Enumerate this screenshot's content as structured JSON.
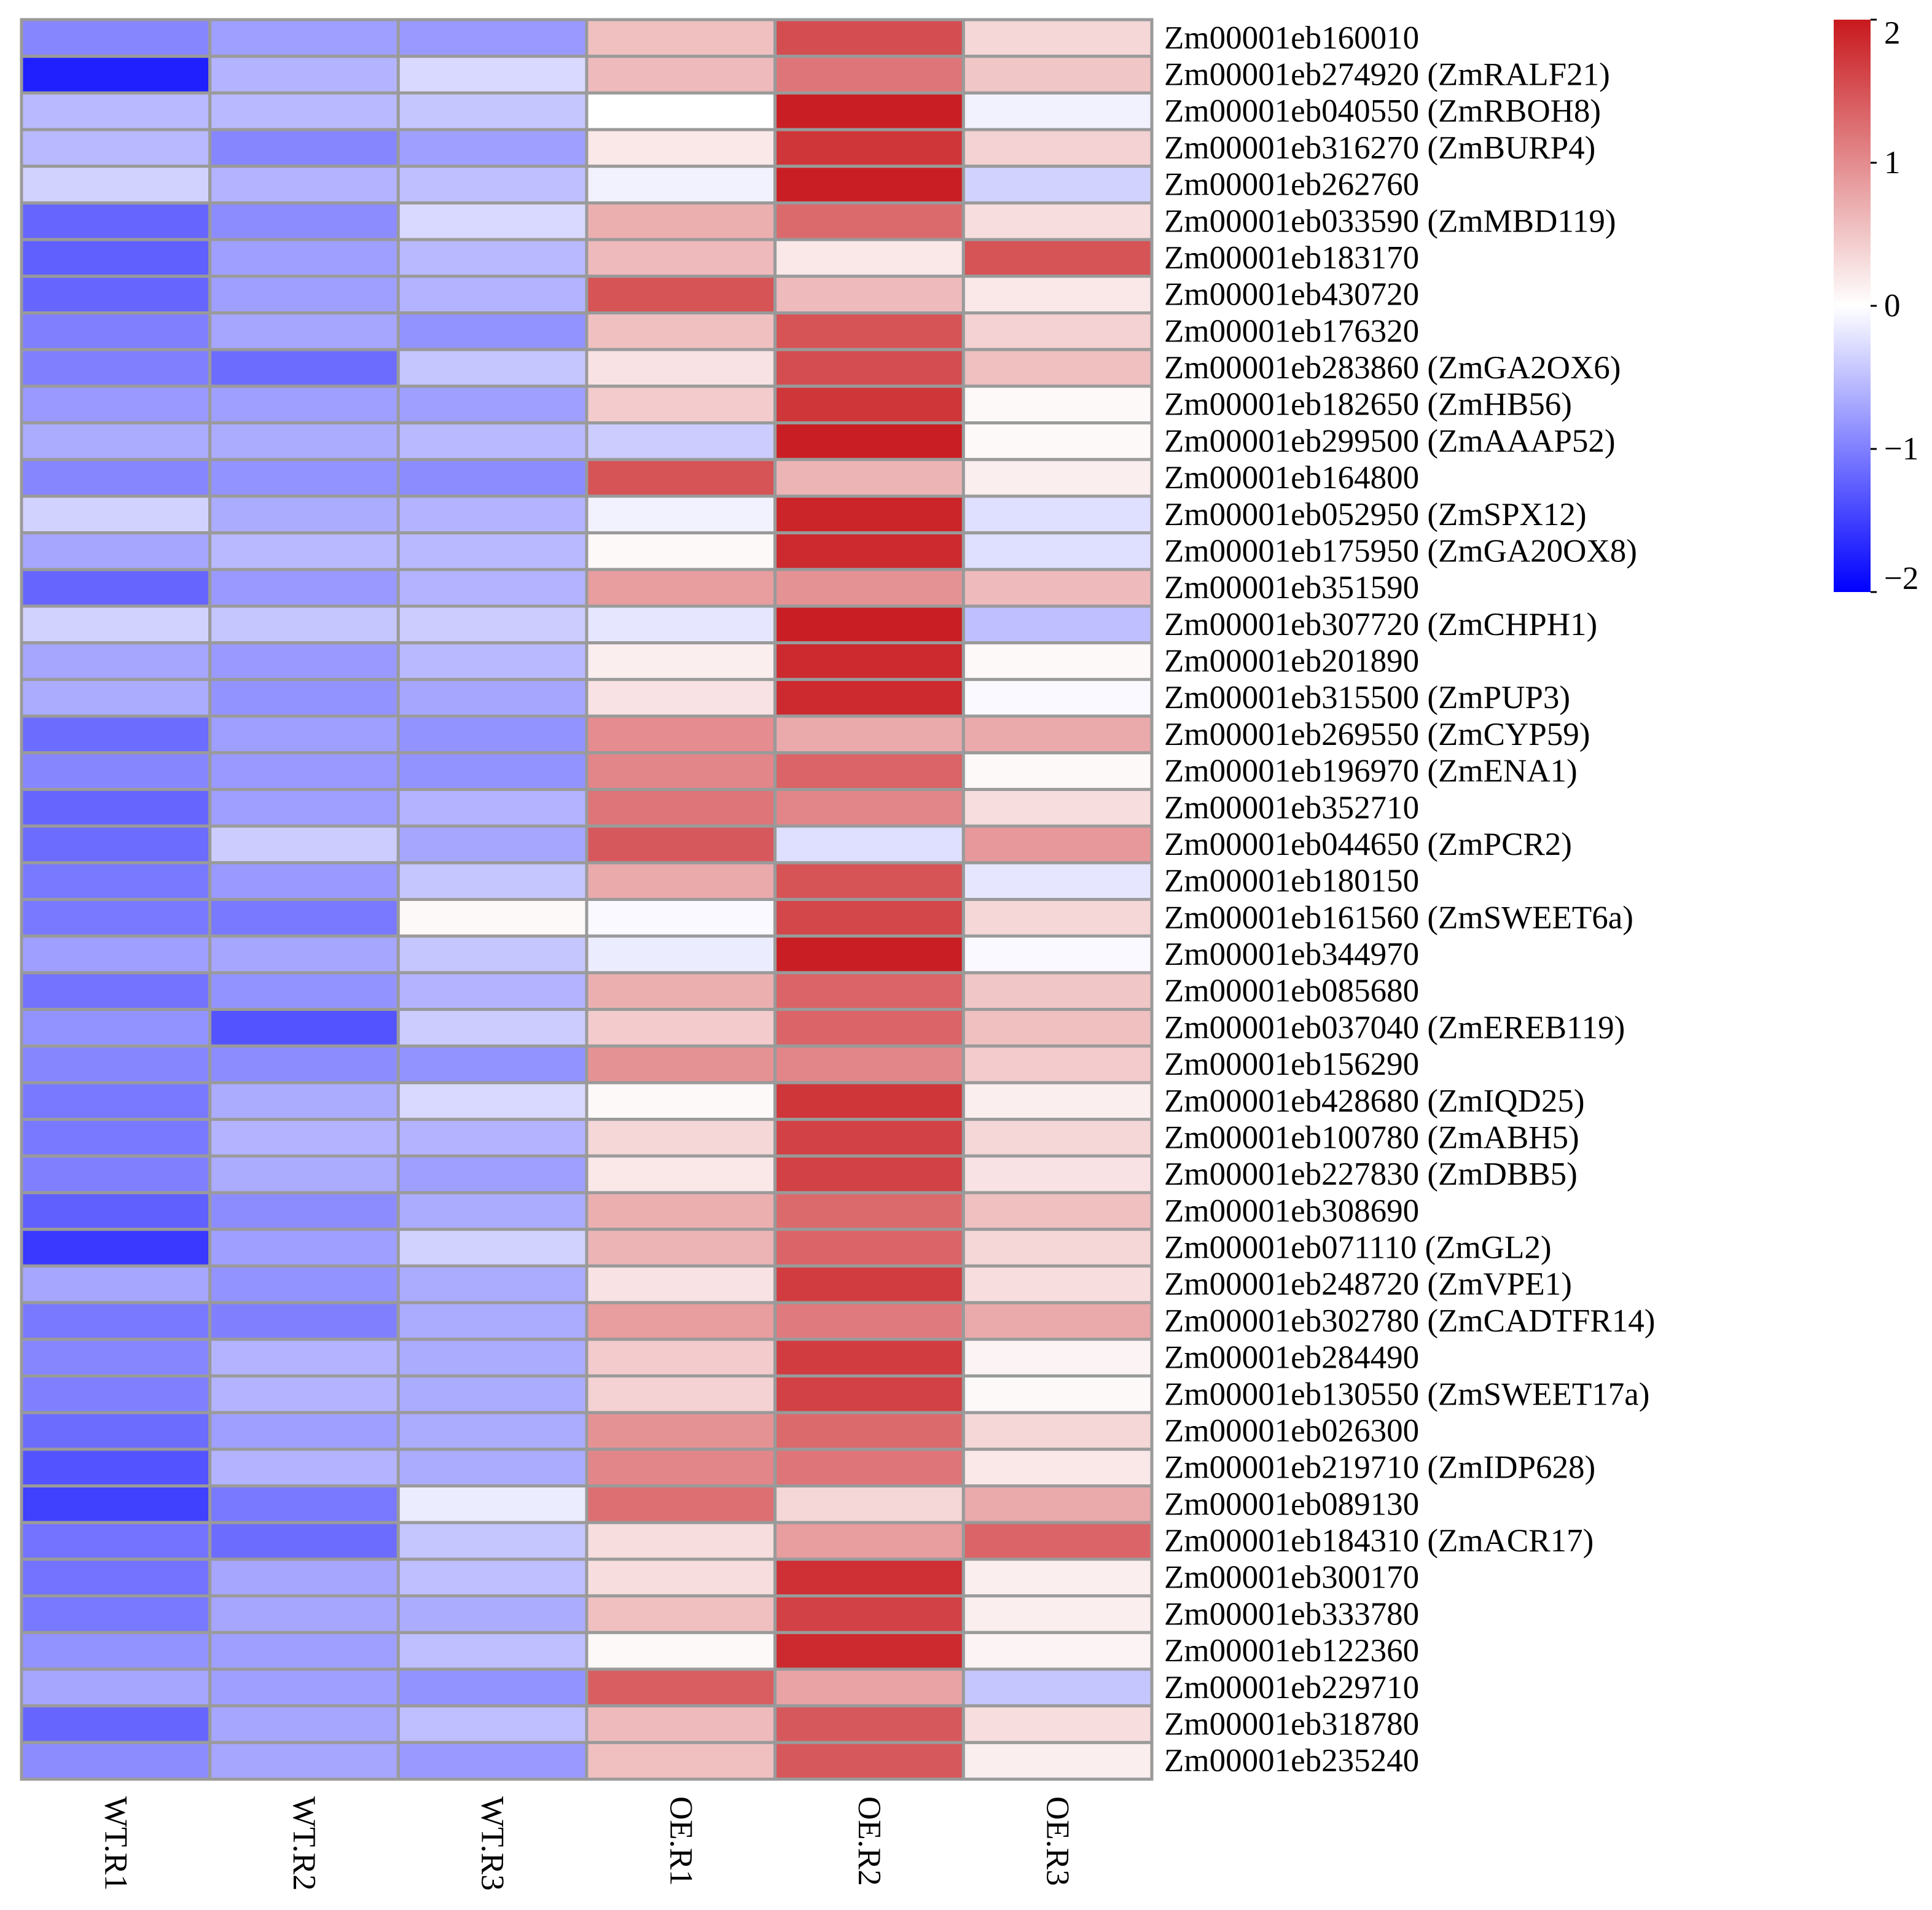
{
  "chart_data": {
    "type": "heatmap",
    "title": "",
    "columns": [
      "WT.R1",
      "WT.R2",
      "WT.R3",
      "OE.R1",
      "OE.R2",
      "OE.R3"
    ],
    "rows": [
      "Zm00001eb160010",
      "Zm00001eb274920 (ZmRALF21)",
      "Zm00001eb040550 (ZmRBOH8)",
      "Zm00001eb316270 (ZmBURP4)",
      "Zm00001eb262760",
      "Zm00001eb033590 (ZmMBD119)",
      "Zm00001eb183170",
      "Zm00001eb430720",
      "Zm00001eb176320",
      "Zm00001eb283860 (ZmGA2OX6)",
      "Zm00001eb182650 (ZmHB56)",
      "Zm00001eb299500 (ZmAAAP52)",
      "Zm00001eb164800",
      "Zm00001eb052950 (ZmSPX12)",
      "Zm00001eb175950 (ZmGA20OX8)",
      "Zm00001eb351590",
      "Zm00001eb307720 (ZmCHPH1)",
      "Zm00001eb201890",
      "Zm00001eb315500 (ZmPUP3)",
      "Zm00001eb269550 (ZmCYP59)",
      "Zm00001eb196970 (ZmENA1)",
      "Zm00001eb352710",
      "Zm00001eb044650 (ZmPCR2)",
      "Zm00001eb180150",
      "Zm00001eb161560 (ZmSWEET6a)",
      "Zm00001eb344970",
      "Zm00001eb085680",
      "Zm00001eb037040 (ZmEREB119)",
      "Zm00001eb156290",
      "Zm00001eb428680 (ZmIQD25)",
      "Zm00001eb100780 (ZmABH5)",
      "Zm00001eb227830 (ZmDBB5)",
      "Zm00001eb308690",
      "Zm00001eb071110 (ZmGL2)",
      "Zm00001eb248720 (ZmVPE1)",
      "Zm00001eb302780 (ZmCADTFR14)",
      "Zm00001eb284490",
      "Zm00001eb130550 (ZmSWEET17a)",
      "Zm00001eb026300",
      "Zm00001eb219710 (ZmIDP628)",
      "Zm00001eb089130",
      "Zm00001eb184310 (ZmACR17)",
      "Zm00001eb300170",
      "Zm00001eb333780",
      "Zm00001eb122360",
      "Zm00001eb229710",
      "Zm00001eb318780",
      "Zm00001eb235240"
    ],
    "values": [
      [
        -0.95,
        -0.75,
        -0.8,
        0.55,
        1.55,
        0.35
      ],
      [
        -1.75,
        -0.6,
        -0.3,
        0.6,
        1.2,
        0.5
      ],
      [
        -0.55,
        -0.55,
        -0.45,
        0.0,
        1.95,
        -0.1
      ],
      [
        -0.55,
        -0.95,
        -0.75,
        0.2,
        1.75,
        0.4
      ],
      [
        -0.35,
        -0.6,
        -0.5,
        -0.1,
        1.95,
        -0.35
      ],
      [
        -1.2,
        -0.9,
        -0.3,
        0.7,
        1.3,
        0.3
      ],
      [
        -1.25,
        -0.75,
        -0.55,
        0.6,
        0.2,
        1.5
      ],
      [
        -1.2,
        -0.75,
        -0.6,
        1.5,
        0.6,
        0.2
      ],
      [
        -1.0,
        -0.7,
        -0.85,
        0.55,
        1.5,
        0.4
      ],
      [
        -1.0,
        -1.15,
        -0.45,
        0.25,
        1.55,
        0.55
      ],
      [
        -0.8,
        -0.75,
        -0.75,
        0.45,
        1.75,
        0.05
      ],
      [
        -0.65,
        -0.65,
        -0.55,
        -0.4,
        1.95,
        0.05
      ],
      [
        -0.95,
        -0.85,
        -0.9,
        1.5,
        0.65,
        0.15
      ],
      [
        -0.35,
        -0.65,
        -0.6,
        -0.1,
        1.9,
        -0.25
      ],
      [
        -0.7,
        -0.55,
        -0.55,
        0.05,
        1.85,
        -0.25
      ],
      [
        -1.2,
        -0.8,
        -0.6,
        0.85,
        0.95,
        0.6
      ],
      [
        -0.35,
        -0.45,
        -0.4,
        -0.2,
        1.95,
        -0.5
      ],
      [
        -0.7,
        -0.8,
        -0.55,
        0.15,
        1.85,
        0.05
      ],
      [
        -0.65,
        -0.85,
        -0.7,
        0.25,
        1.85,
        -0.05
      ],
      [
        -1.15,
        -0.75,
        -0.85,
        1.0,
        0.75,
        0.75
      ],
      [
        -0.95,
        -0.8,
        -0.85,
        1.05,
        1.35,
        0.05
      ],
      [
        -1.2,
        -0.75,
        -0.6,
        1.2,
        1.05,
        0.3
      ],
      [
        -1.15,
        -0.4,
        -0.7,
        1.45,
        -0.25,
        0.9
      ],
      [
        -1.05,
        -0.8,
        -0.45,
        0.75,
        1.5,
        -0.2
      ],
      [
        -1.05,
        -1.05,
        0.05,
        -0.05,
        1.6,
        0.35
      ],
      [
        -0.75,
        -0.7,
        -0.45,
        -0.15,
        1.95,
        -0.05
      ],
      [
        -1.1,
        -0.85,
        -0.6,
        0.7,
        1.35,
        0.5
      ],
      [
        -0.85,
        -1.35,
        -0.4,
        0.45,
        1.35,
        0.55
      ],
      [
        -0.95,
        -0.9,
        -0.85,
        0.95,
        1.05,
        0.45
      ],
      [
        -1.05,
        -0.65,
        -0.3,
        0.05,
        1.75,
        0.15
      ],
      [
        -1.05,
        -0.6,
        -0.6,
        0.35,
        1.65,
        0.35
      ],
      [
        -1.0,
        -0.65,
        -0.75,
        0.2,
        1.65,
        0.25
      ],
      [
        -1.25,
        -0.9,
        -0.65,
        0.7,
        1.3,
        0.55
      ],
      [
        -1.55,
        -0.75,
        -0.35,
        0.65,
        1.35,
        0.35
      ],
      [
        -0.7,
        -0.85,
        -0.65,
        0.25,
        1.7,
        0.3
      ],
      [
        -1.05,
        -1.0,
        -0.65,
        0.85,
        1.15,
        0.75
      ],
      [
        -0.95,
        -0.6,
        -0.65,
        0.45,
        1.7,
        0.1
      ],
      [
        -1.0,
        -0.6,
        -0.65,
        0.4,
        1.65,
        0.05
      ],
      [
        -1.15,
        -0.75,
        -0.65,
        0.95,
        1.3,
        0.35
      ],
      [
        -1.35,
        -0.6,
        -0.65,
        1.05,
        1.2,
        0.2
      ],
      [
        -1.5,
        -1.05,
        -0.15,
        1.25,
        0.35,
        0.75
      ],
      [
        -1.1,
        -1.15,
        -0.45,
        0.3,
        0.85,
        1.35
      ],
      [
        -1.1,
        -0.7,
        -0.5,
        0.3,
        1.8,
        0.15
      ],
      [
        -1.05,
        -0.7,
        -0.65,
        0.55,
        1.65,
        0.15
      ],
      [
        -0.85,
        -0.75,
        -0.5,
        0.05,
        1.85,
        0.1
      ],
      [
        -0.7,
        -0.75,
        -0.85,
        1.4,
        0.8,
        -0.45
      ],
      [
        -1.2,
        -0.7,
        -0.5,
        0.6,
        1.45,
        0.3
      ],
      [
        -0.9,
        -0.7,
        -0.8,
        0.55,
        1.45,
        0.15
      ]
    ],
    "color_scale": {
      "min": -2,
      "max": 2,
      "low_color": "#0000ff",
      "mid_color": "#ffffff",
      "high_color": "#c8191e",
      "ticks": [
        2,
        1,
        0,
        -1,
        -2
      ],
      "tick_labels": [
        "2",
        "1",
        "0",
        "−1",
        "−2"
      ]
    },
    "legend_position": "top-right",
    "cell_border_color": "#9a9a9a"
  }
}
